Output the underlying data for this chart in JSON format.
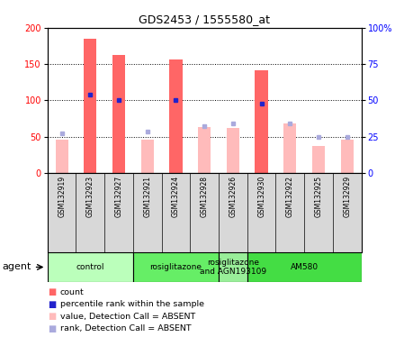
{
  "title": "GDS2453 / 1555580_at",
  "samples": [
    "GSM132919",
    "GSM132923",
    "GSM132927",
    "GSM132921",
    "GSM132924",
    "GSM132928",
    "GSM132926",
    "GSM132930",
    "GSM132922",
    "GSM132925",
    "GSM132929"
  ],
  "bar_values": [
    46,
    185,
    162,
    46,
    156,
    63,
    62,
    141,
    68,
    37,
    46
  ],
  "rank_values": [
    55,
    108,
    100,
    57,
    100,
    65,
    68,
    95,
    68,
    50,
    50
  ],
  "detection_absent": [
    true,
    false,
    false,
    true,
    false,
    true,
    true,
    false,
    true,
    true,
    true
  ],
  "groups": [
    {
      "label": "control",
      "start": 0,
      "end": 3,
      "color": "#bbffbb"
    },
    {
      "label": "rosiglitazone",
      "start": 3,
      "end": 6,
      "color": "#66ee66"
    },
    {
      "label": "rosiglitazone\nand AGN193109",
      "start": 6,
      "end": 7,
      "color": "#99ee99"
    },
    {
      "label": "AM580",
      "start": 7,
      "end": 11,
      "color": "#44dd44"
    }
  ],
  "ylim_left": [
    0,
    200
  ],
  "ylim_right": [
    0,
    100
  ],
  "yticks_left": [
    0,
    50,
    100,
    150,
    200
  ],
  "yticks_right": [
    0,
    25,
    50,
    75,
    100
  ],
  "ytick_labels_right": [
    "0",
    "25",
    "50",
    "75",
    "100%"
  ],
  "color_bar_present": "#ff6666",
  "color_rank_present": "#2222cc",
  "color_bar_absent": "#ffbbbb",
  "color_rank_absent": "#aaaadd",
  "background_color": "#ffffff"
}
